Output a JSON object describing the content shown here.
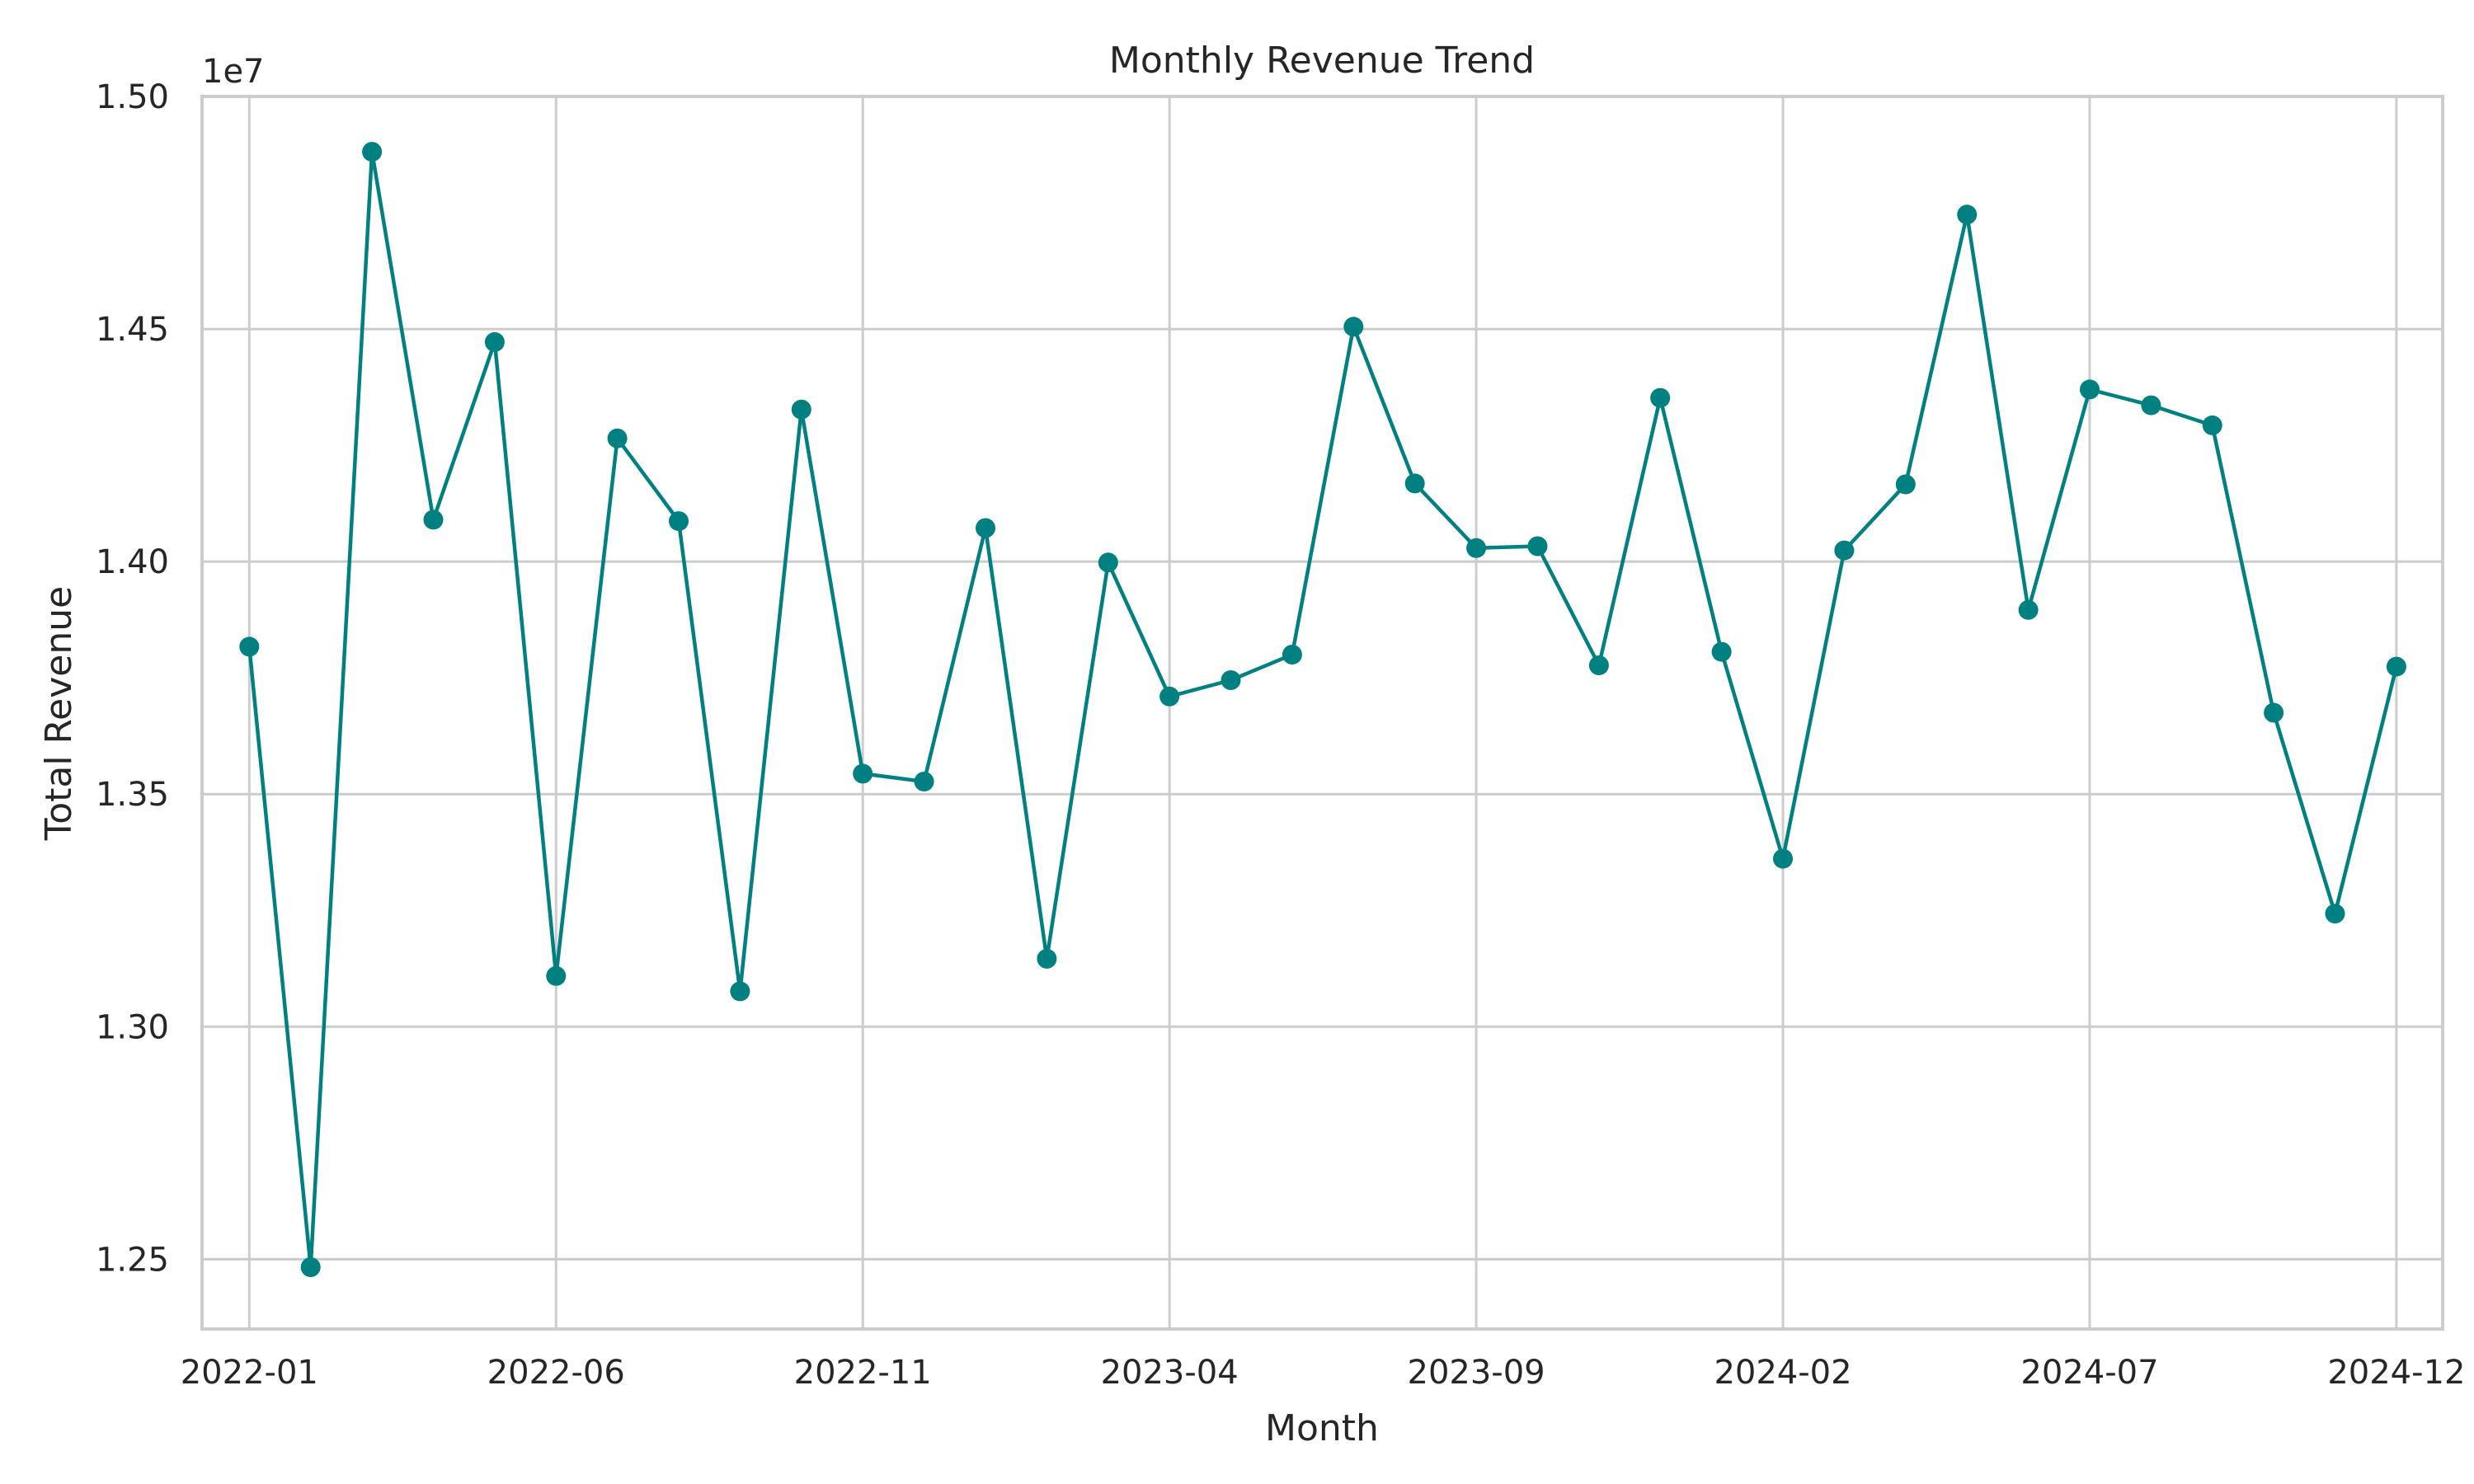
{
  "chart_data": {
    "type": "line",
    "title": "Monthly Revenue Trend",
    "xlabel": "Month",
    "ylabel": "Total Revenue",
    "offset_label": "1e7",
    "grid": true,
    "color": "#008080",
    "ylim": [
      1.235,
      1.5
    ],
    "xlim": [
      "2021-12-08",
      "2024-12-24"
    ],
    "x_ticks": [
      "2022-01",
      "2022-06",
      "2022-11",
      "2023-04",
      "2023-09",
      "2024-02",
      "2024-07",
      "2024-12"
    ],
    "y_ticks": [
      1.25,
      1.3,
      1.35,
      1.4,
      1.45,
      1.5
    ],
    "y_tick_labels": [
      "1.25",
      "1.30",
      "1.35",
      "1.40",
      "1.45",
      "1.50"
    ],
    "x": [
      "2022-01",
      "2022-02",
      "2022-03",
      "2022-04",
      "2022-05",
      "2022-06",
      "2022-07",
      "2022-08",
      "2022-09",
      "2022-10",
      "2022-11",
      "2022-12",
      "2023-01",
      "2023-02",
      "2023-03",
      "2023-04",
      "2023-05",
      "2023-06",
      "2023-07",
      "2023-08",
      "2023-09",
      "2023-10",
      "2023-11",
      "2023-12",
      "2024-01",
      "2024-02",
      "2024-03",
      "2024-04",
      "2024-05",
      "2024-06",
      "2024-07",
      "2024-08",
      "2024-09",
      "2024-10",
      "2024-11",
      "2024-12"
    ],
    "series": [
      {
        "values": [
          1.3817,
          1.2483,
          1.4881,
          1.409,
          1.4472,
          1.3109,
          1.4265,
          1.4087,
          1.3076,
          1.4327,
          1.3544,
          1.3527,
          1.4072,
          1.3146,
          1.3998,
          1.371,
          1.3745,
          1.38,
          1.4505,
          1.4168,
          1.4029,
          1.4033,
          1.3777,
          1.4352,
          1.3806,
          1.3361,
          1.4024,
          1.4166,
          1.4746,
          1.3896,
          1.437,
          1.4336,
          1.4293,
          1.3675,
          1.3243,
          1.3774
        ]
      }
    ]
  }
}
